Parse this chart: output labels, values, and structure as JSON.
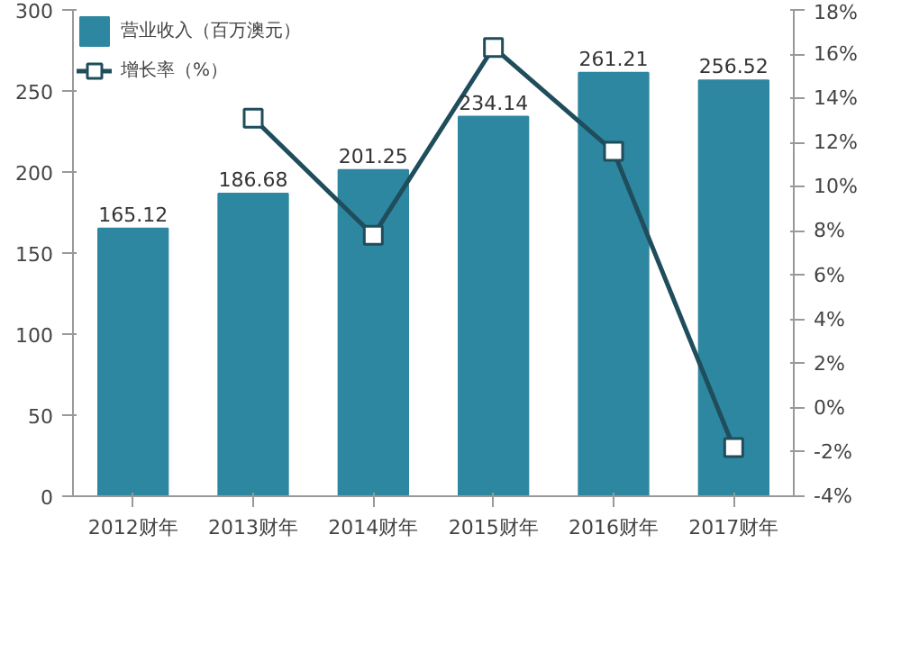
{
  "chart_data": {
    "type": "bar",
    "categories": [
      "2012财年",
      "2013财年",
      "2014财年",
      "2015财年",
      "2016财年",
      "2017财年"
    ],
    "series": [
      {
        "name": "营业收入（百万澳元）",
        "type": "bar",
        "color": "#2e87a0",
        "values": [
          165.12,
          186.68,
          201.25,
          234.14,
          261.21,
          256.52
        ],
        "data_labels": true
      },
      {
        "name": "增长率（%）",
        "type": "line",
        "axis": "y2",
        "color": "#1f4d5c",
        "marker": "square",
        "values": [
          null,
          13.1,
          7.8,
          16.3,
          11.6,
          -1.8
        ]
      }
    ],
    "legend": "top left",
    "ylim": [
      0,
      300
    ],
    "yticks": [
      0,
      50,
      100,
      150,
      200,
      250,
      300
    ],
    "y2lim": [
      -4,
      18
    ],
    "y2ticks": [
      {
        "value": -4,
        "label": "-4%"
      },
      {
        "value": -2,
        "label": "-2%"
      },
      {
        "value": 0,
        "label": "0%"
      },
      {
        "value": 2,
        "label": "2%"
      },
      {
        "value": 4,
        "label": "4%"
      },
      {
        "value": 6,
        "label": "6%"
      },
      {
        "value": 8,
        "label": "8%"
      },
      {
        "value": 10,
        "label": "10%"
      },
      {
        "value": 12,
        "label": "12%"
      },
      {
        "value": 14,
        "label": "14%"
      },
      {
        "value": 16,
        "label": "16%"
      },
      {
        "value": 18,
        "label": "18%"
      }
    ],
    "grid": false
  }
}
